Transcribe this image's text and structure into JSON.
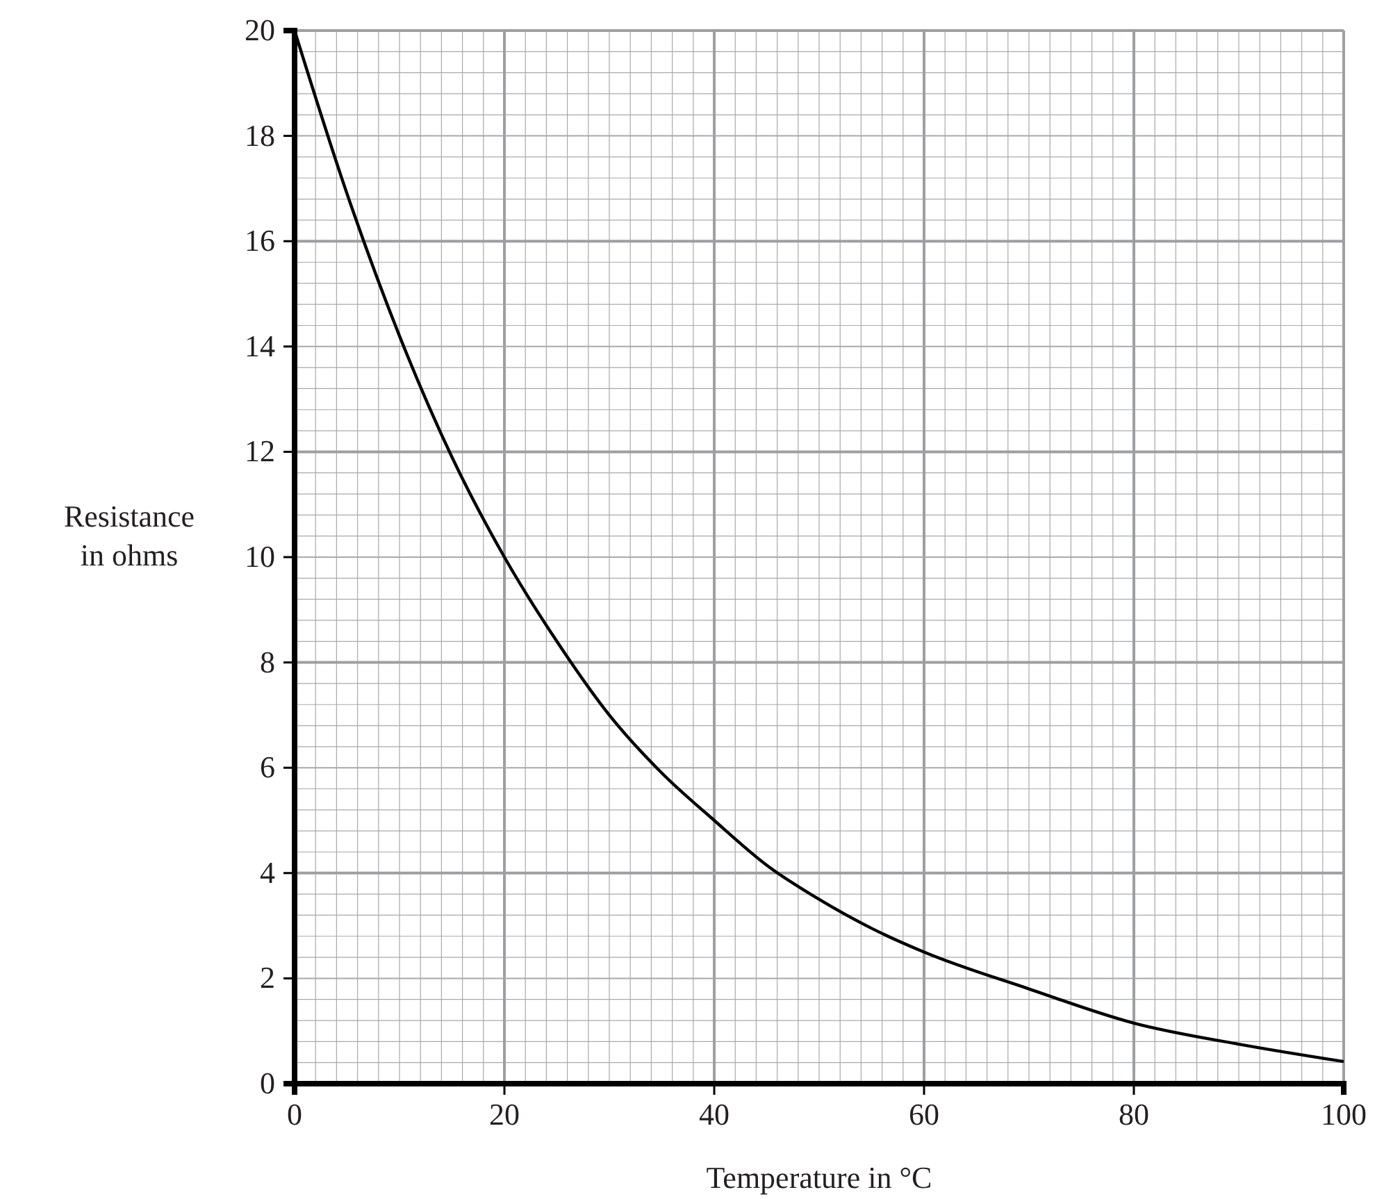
{
  "chart_data": {
    "type": "line",
    "xlabel": "Temperature in °C",
    "ylabel": "Resistance in ohms",
    "x": [
      0,
      5,
      10,
      15,
      20,
      25,
      30,
      35,
      40,
      45,
      50,
      55,
      60,
      70,
      80,
      90,
      100
    ],
    "series": [
      {
        "color": "#000000",
        "values": [
          20,
          16.9,
          14.2,
          11.9,
          10,
          8.4,
          7.0,
          5.9,
          5.0,
          4.15,
          3.5,
          2.95,
          2.5,
          1.8,
          1.15,
          0.75,
          0.42
        ]
      }
    ],
    "xlim": [
      0,
      100
    ],
    "ylim": [
      0,
      20
    ],
    "xticks": [
      0,
      20,
      40,
      60,
      80,
      100
    ],
    "yticks": [
      0,
      2,
      4,
      6,
      8,
      10,
      12,
      14,
      16,
      18,
      20
    ],
    "grid": true,
    "marker": "none",
    "line_style": "solid"
  }
}
